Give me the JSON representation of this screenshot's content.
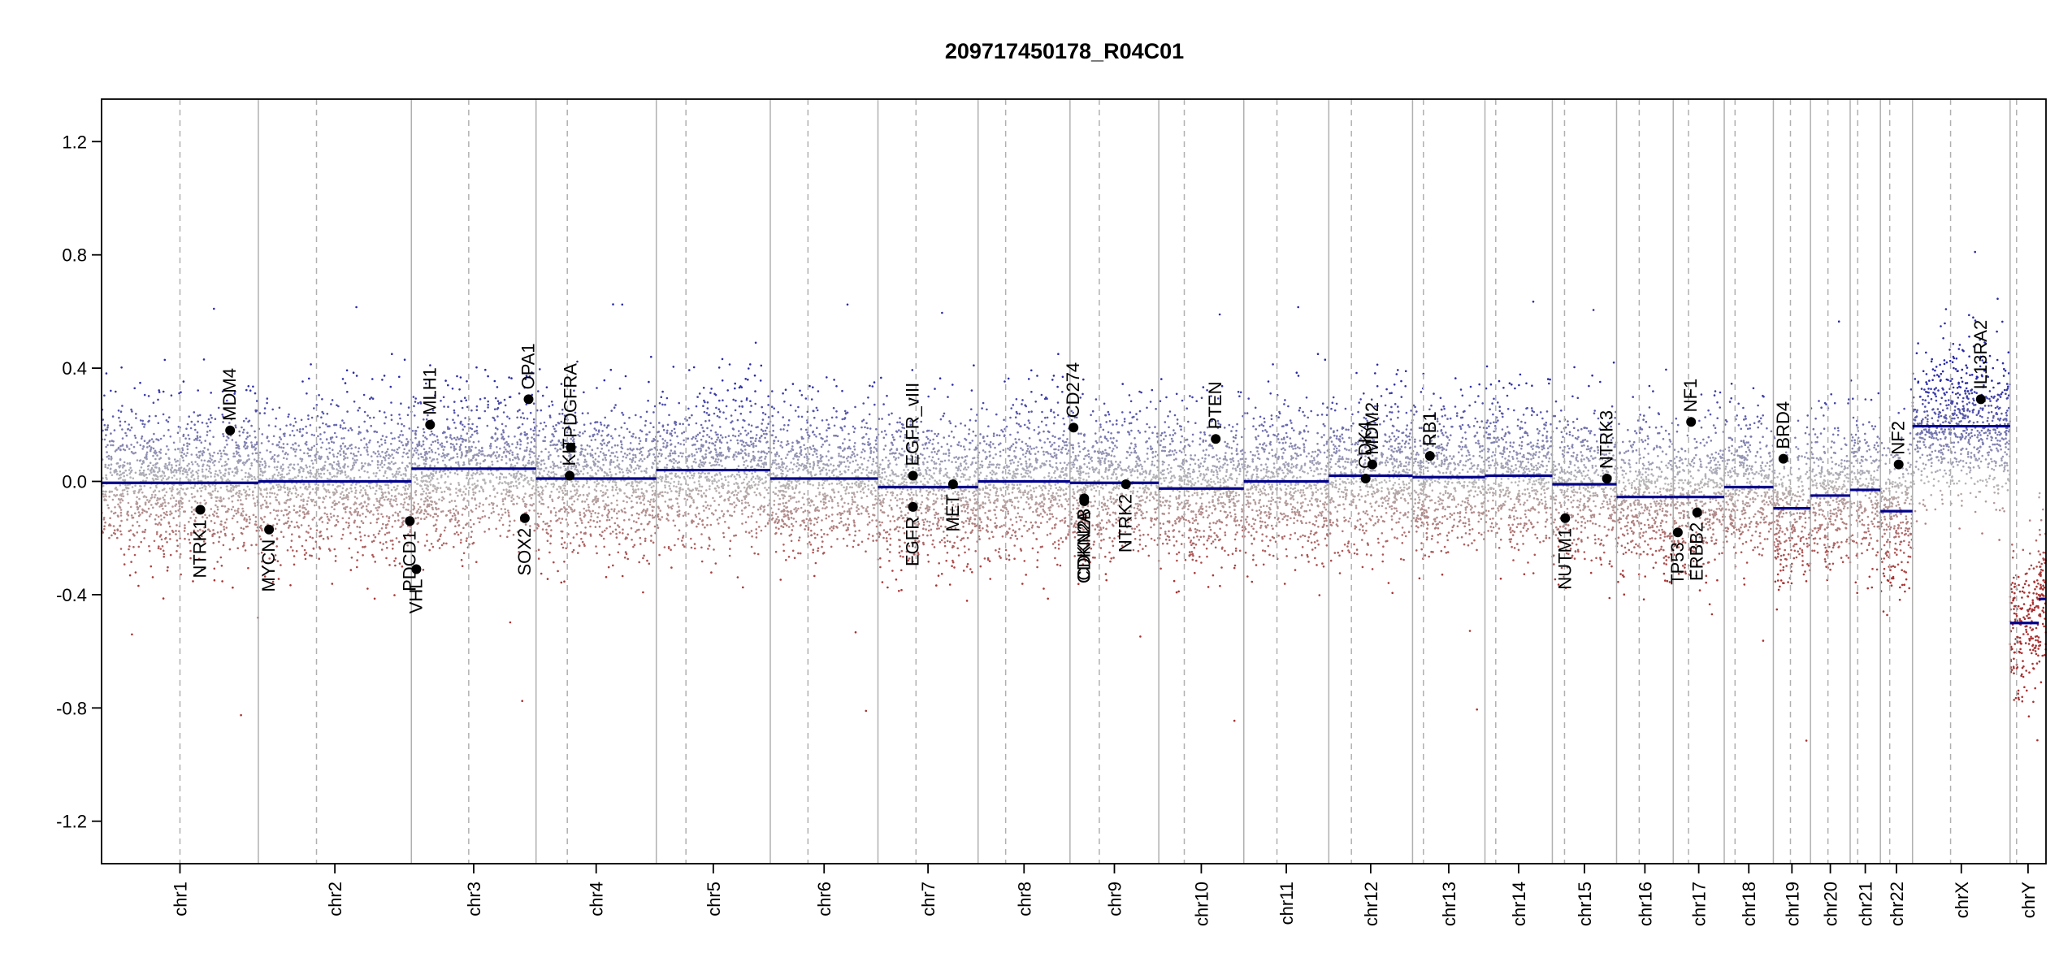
{
  "chart_data": {
    "type": "scatter",
    "title": "209717450178_R04C01",
    "xlabel": "",
    "ylabel": "",
    "ylim": [
      -1.35,
      1.35
    ],
    "y_ticks": [
      -1.2,
      -0.8,
      -0.4,
      0.0,
      0.4,
      0.8,
      1.2
    ],
    "y_tick_labels": [
      "-1.2",
      "-0.8",
      "-0.4",
      "0.0",
      "0.4",
      "0.8",
      "1.2"
    ],
    "grid": false,
    "colors": {
      "gain": "#2a2aa6",
      "neutral": "#b8b8b8",
      "loss": "#a83232",
      "segment": "#00008b",
      "boundary": "#b0b0b0",
      "marker": "#000000"
    },
    "chromosomes": [
      {
        "name": "chr1",
        "length": 249,
        "centromere": 0.5,
        "segments": [
          {
            "start": 0,
            "end": 1,
            "value": -0.005
          }
        ]
      },
      {
        "name": "chr2",
        "length": 243,
        "centromere": 0.38,
        "segments": [
          {
            "start": 0,
            "end": 1,
            "value": 0.0
          }
        ]
      },
      {
        "name": "chr3",
        "length": 198,
        "centromere": 0.46,
        "segments": [
          {
            "start": 0,
            "end": 1,
            "value": 0.045
          }
        ]
      },
      {
        "name": "chr4",
        "length": 191,
        "centromere": 0.26,
        "segments": [
          {
            "start": 0,
            "end": 1,
            "value": 0.01
          }
        ]
      },
      {
        "name": "chr5",
        "length": 181,
        "centromere": 0.26,
        "segments": [
          {
            "start": 0,
            "end": 1,
            "value": 0.04
          }
        ]
      },
      {
        "name": "chr6",
        "length": 171,
        "centromere": 0.35,
        "segments": [
          {
            "start": 0,
            "end": 1,
            "value": 0.01
          }
        ]
      },
      {
        "name": "chr7",
        "length": 159,
        "centromere": 0.38,
        "segments": [
          {
            "start": 0,
            "end": 1,
            "value": -0.02
          }
        ]
      },
      {
        "name": "chr8",
        "length": 146,
        "centromere": 0.3,
        "segments": [
          {
            "start": 0,
            "end": 1,
            "value": 0.0
          }
        ]
      },
      {
        "name": "chr9",
        "length": 141,
        "centromere": 0.33,
        "segments": [
          {
            "start": 0,
            "end": 1,
            "value": -0.005
          }
        ]
      },
      {
        "name": "chr10",
        "length": 135,
        "centromere": 0.3,
        "segments": [
          {
            "start": 0,
            "end": 1,
            "value": -0.025
          }
        ]
      },
      {
        "name": "chr11",
        "length": 135,
        "centromere": 0.39,
        "segments": [
          {
            "start": 0,
            "end": 1,
            "value": 0.0
          }
        ]
      },
      {
        "name": "chr12",
        "length": 133,
        "centromere": 0.27,
        "segments": [
          {
            "start": 0,
            "end": 1,
            "value": 0.02
          }
        ]
      },
      {
        "name": "chr13",
        "length": 115,
        "centromere": 0.15,
        "segments": [
          {
            "start": 0,
            "end": 1,
            "value": 0.015
          }
        ]
      },
      {
        "name": "chr14",
        "length": 107,
        "centromere": 0.16,
        "segments": [
          {
            "start": 0,
            "end": 1,
            "value": 0.02
          }
        ]
      },
      {
        "name": "chr15",
        "length": 102,
        "centromere": 0.19,
        "segments": [
          {
            "start": 0,
            "end": 1,
            "value": -0.01
          }
        ]
      },
      {
        "name": "chr16",
        "length": 90,
        "centromere": 0.4,
        "segments": [
          {
            "start": 0,
            "end": 1,
            "value": -0.055
          }
        ]
      },
      {
        "name": "chr17",
        "length": 81,
        "centromere": 0.3,
        "segments": [
          {
            "start": 0,
            "end": 1,
            "value": -0.055
          }
        ]
      },
      {
        "name": "chr18",
        "length": 78,
        "centromere": 0.22,
        "segments": [
          {
            "start": 0,
            "end": 1,
            "value": -0.02
          }
        ]
      },
      {
        "name": "chr19",
        "length": 59,
        "centromere": 0.46,
        "segments": [
          {
            "start": 0,
            "end": 1,
            "value": -0.095
          }
        ]
      },
      {
        "name": "chr20",
        "length": 63,
        "centromere": 0.44,
        "segments": [
          {
            "start": 0,
            "end": 1,
            "value": -0.05
          }
        ]
      },
      {
        "name": "chr21",
        "length": 48,
        "centromere": 0.25,
        "segments": [
          {
            "start": 0,
            "end": 1,
            "value": -0.03
          }
        ]
      },
      {
        "name": "chr22",
        "length": 51,
        "centromere": 0.29,
        "segments": [
          {
            "start": 0,
            "end": 1,
            "value": -0.105
          }
        ]
      },
      {
        "name": "chrX",
        "length": 155,
        "centromere": 0.39,
        "segments": [
          {
            "start": 0,
            "end": 1,
            "value": 0.195
          }
        ]
      },
      {
        "name": "chrY",
        "length": 57,
        "centromere": 0.18,
        "segments": [
          {
            "start": 0,
            "end": 0.8,
            "value": -0.5
          },
          {
            "start": 0.8,
            "end": 1,
            "value": -0.415
          }
        ]
      }
    ],
    "genes": [
      {
        "name": "NTRK1",
        "chr": "chr1",
        "pos": 0.63,
        "value": -0.1,
        "label_side": "below"
      },
      {
        "name": "MDM4",
        "chr": "chr1",
        "pos": 0.82,
        "value": 0.18,
        "label_side": "above"
      },
      {
        "name": "MYCN",
        "chr": "chr2",
        "pos": 0.07,
        "value": -0.17,
        "label_side": "below"
      },
      {
        "name": "PDCD1",
        "chr": "chr2",
        "pos": 0.99,
        "value": -0.14,
        "label_side": "below"
      },
      {
        "name": "VHL",
        "chr": "chr3",
        "pos": 0.04,
        "value": -0.31,
        "label_side": "below"
      },
      {
        "name": "MLH1",
        "chr": "chr3",
        "pos": 0.15,
        "value": 0.2,
        "label_side": "above"
      },
      {
        "name": "SOX2",
        "chr": "chr3",
        "pos": 0.91,
        "value": -0.13,
        "label_side": "below"
      },
      {
        "name": "OPA1",
        "chr": "chr3",
        "pos": 0.94,
        "value": 0.29,
        "label_side": "above"
      },
      {
        "name": "KIT",
        "chr": "chr4",
        "pos": 0.28,
        "value": 0.02,
        "label_side": "above"
      },
      {
        "name": "PDGFRA",
        "chr": "chr4",
        "pos": 0.29,
        "value": 0.12,
        "label_side": "above"
      },
      {
        "name": "EGFR",
        "chr": "chr7",
        "pos": 0.35,
        "value": -0.09,
        "label_side": "below"
      },
      {
        "name": "EGFR_vIII",
        "chr": "chr7",
        "pos": 0.35,
        "value": 0.02,
        "label_side": "above"
      },
      {
        "name": "MET",
        "chr": "chr7",
        "pos": 0.75,
        "value": -0.01,
        "label_side": "below"
      },
      {
        "name": "CD274",
        "chr": "chr9",
        "pos": 0.04,
        "value": 0.19,
        "label_side": "above"
      },
      {
        "name": "CDKN2A",
        "chr": "chr9",
        "pos": 0.16,
        "value": -0.07,
        "label_side": "below"
      },
      {
        "name": "CDKN2B",
        "chr": "chr9",
        "pos": 0.16,
        "value": -0.06,
        "label_side": "below"
      },
      {
        "name": "NTRK2",
        "chr": "chr9",
        "pos": 0.63,
        "value": -0.01,
        "label_side": "below"
      },
      {
        "name": "PTEN",
        "chr": "chr10",
        "pos": 0.67,
        "value": 0.15,
        "label_side": "above"
      },
      {
        "name": "CDK4",
        "chr": "chr12",
        "pos": 0.44,
        "value": 0.01,
        "label_side": "above"
      },
      {
        "name": "MDM2",
        "chr": "chr12",
        "pos": 0.52,
        "value": 0.06,
        "label_side": "above"
      },
      {
        "name": "RB1",
        "chr": "chr13",
        "pos": 0.24,
        "value": 0.09,
        "label_side": "above"
      },
      {
        "name": "NUTM1",
        "chr": "chr15",
        "pos": 0.2,
        "value": -0.13,
        "label_side": "below"
      },
      {
        "name": "NTRK3",
        "chr": "chr15",
        "pos": 0.85,
        "value": 0.01,
        "label_side": "above"
      },
      {
        "name": "TP53",
        "chr": "chr17",
        "pos": 0.09,
        "value": -0.18,
        "label_side": "below"
      },
      {
        "name": "NF1",
        "chr": "chr17",
        "pos": 0.35,
        "value": 0.21,
        "label_side": "above"
      },
      {
        "name": "ERBB2",
        "chr": "chr17",
        "pos": 0.47,
        "value": -0.11,
        "label_side": "below"
      },
      {
        "name": "BRD4",
        "chr": "chr19",
        "pos": 0.27,
        "value": 0.08,
        "label_side": "above"
      },
      {
        "name": "NF2",
        "chr": "chr22",
        "pos": 0.57,
        "value": 0.06,
        "label_side": "above"
      },
      {
        "name": "IL13RA2",
        "chr": "chrX",
        "pos": 0.7,
        "value": 0.29,
        "label_side": "above"
      }
    ],
    "point_cloud": {
      "points_per_mb": 5,
      "spread": 0.13,
      "outlier_rate": 0.03
    }
  }
}
